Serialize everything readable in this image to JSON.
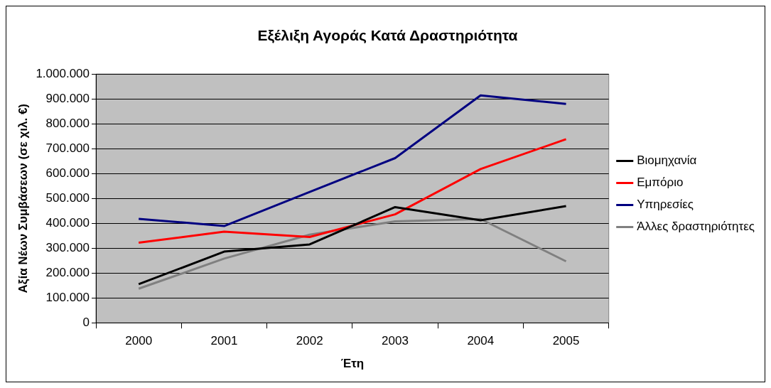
{
  "chart_data": {
    "type": "line",
    "title": "Εξέλιξη Αγοράς Κατά Δραστηριότητα",
    "xlabel": "Έτη",
    "ylabel": "Αξία Νέων Συμβάσεων (σε χιλ. €)",
    "categories": [
      "2000",
      "2001",
      "2002",
      "2003",
      "2004",
      "2005"
    ],
    "series": [
      {
        "name": "Βιομηχανία",
        "color": "#000000",
        "values": [
          155000,
          286000,
          315000,
          465000,
          412000,
          469000
        ]
      },
      {
        "name": "Εμπόριο",
        "color": "#ff0000",
        "values": [
          322000,
          366000,
          345000,
          436000,
          618000,
          738000
        ]
      },
      {
        "name": "Υπηρεσίες",
        "color": "#000080",
        "values": [
          418000,
          389000,
          526000,
          662000,
          914000,
          880000
        ]
      },
      {
        "name": "Άλλες δραστηριότητες",
        "color": "#808080",
        "values": [
          137000,
          258000,
          354000,
          408000,
          417000,
          247000
        ]
      }
    ],
    "ylim": [
      0,
      1000000
    ],
    "yticks": [
      {
        "value": 0,
        "label": "0"
      },
      {
        "value": 100000,
        "label": "100.000"
      },
      {
        "value": 200000,
        "label": "200.000"
      },
      {
        "value": 300000,
        "label": "300.000"
      },
      {
        "value": 400000,
        "label": "400.000"
      },
      {
        "value": 500000,
        "label": "500.000"
      },
      {
        "value": 600000,
        "label": "600.000"
      },
      {
        "value": 700000,
        "label": "700.000"
      },
      {
        "value": 800000,
        "label": "800.000"
      },
      {
        "value": 900000,
        "label": "900.000"
      },
      {
        "value": 1000000,
        "label": "1.000.000"
      }
    ],
    "grid": "y",
    "legend": "right",
    "marker": "none",
    "line_style": "solid"
  }
}
